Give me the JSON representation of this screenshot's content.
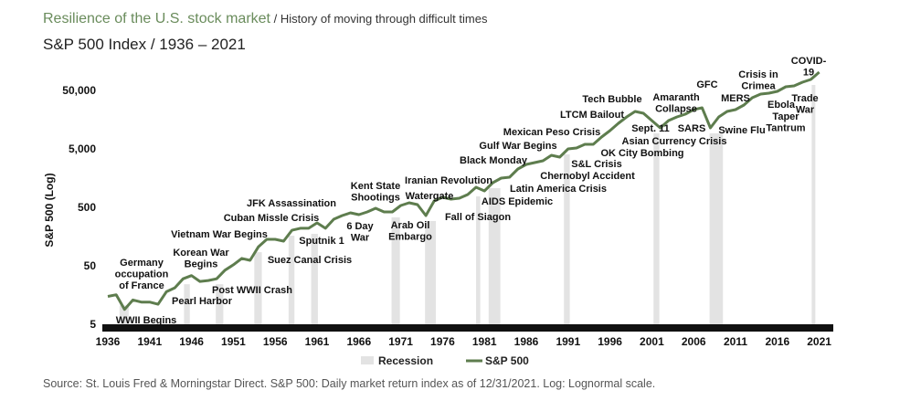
{
  "header": {
    "title": "Resilience of the U.S. stock market",
    "title_suffix": " / History of moving through difficult times",
    "subtitle": "S&P 500 Index / 1936 – 2021"
  },
  "source": "Source: St. Louis Fred & Morningstar Direct. S&P 500: Daily market return index as of 12/31/2021. Log: Lognormal scale.",
  "colors": {
    "line": "#5e7d4e",
    "recession": "#e3e3e3",
    "title": "#6a8c5c",
    "baseline": "#111111"
  },
  "chart_data": {
    "type": "line",
    "title": "S&P 500 Index / 1936 – 2021",
    "ylabel": "S&P 500 (Log)",
    "xlabel": "",
    "yscale": "log",
    "ylim": [
      5,
      100000
    ],
    "xlim": [
      1936,
      2022
    ],
    "grid": false,
    "legend_position": "bottom-center",
    "x_ticks": [
      "1936",
      "1941",
      "1946",
      "1951",
      "1956",
      "1961",
      "1966",
      "1971",
      "1976",
      "1981",
      "1986",
      "1991",
      "1996",
      "2001",
      "2006",
      "2011",
      "2016",
      "2021"
    ],
    "y_ticks": [
      {
        "value": 5,
        "label": "5"
      },
      {
        "value": 50,
        "label": "50"
      },
      {
        "value": 500,
        "label": "500"
      },
      {
        "value": 5000,
        "label": "5,000"
      },
      {
        "value": 50000,
        "label": "50,000"
      }
    ],
    "legend": [
      "Recession",
      "S&P 500"
    ],
    "series": [
      {
        "name": "S&P 500",
        "x": [
          1936,
          1937,
          1938,
          1939,
          1940,
          1941,
          1942,
          1943,
          1944,
          1945,
          1946,
          1947,
          1948,
          1949,
          1950,
          1951,
          1952,
          1953,
          1954,
          1955,
          1956,
          1957,
          1958,
          1959,
          1960,
          1961,
          1962,
          1963,
          1964,
          1965,
          1966,
          1967,
          1968,
          1969,
          1970,
          1971,
          1972,
          1973,
          1974,
          1975,
          1976,
          1977,
          1978,
          1979,
          1980,
          1981,
          1982,
          1983,
          1984,
          1985,
          1986,
          1987,
          1988,
          1989,
          1990,
          1991,
          1992,
          1993,
          1994,
          1995,
          1996,
          1997,
          1998,
          1999,
          2000,
          2001,
          2002,
          2003,
          2004,
          2005,
          2006,
          2007,
          2008,
          2009,
          2010,
          2011,
          2012,
          2013,
          2014,
          2015,
          2016,
          2017,
          2018,
          2019,
          2020,
          2021
        ],
        "y": [
          15,
          16,
          9,
          13,
          12,
          12,
          11,
          18,
          21,
          30,
          34,
          27,
          28,
          30,
          42,
          52,
          67,
          62,
          106,
          142,
          142,
          132,
          203,
          219,
          219,
          271,
          219,
          313,
          362,
          403,
          375,
          418,
          482,
          418,
          418,
          537,
          598,
          557,
          362,
          643,
          743,
          692,
          717,
          828,
          1104,
          955,
          1321,
          1581,
          1640,
          2266,
          2712,
          2916,
          3133,
          3890,
          3617,
          5000,
          5187,
          5986,
          5986,
          7980,
          10267,
          13690,
          17620,
          21870,
          20335,
          15255,
          11435,
          15255,
          17620,
          19630,
          23485,
          25235,
          11435,
          17620,
          21870,
          23485,
          28117,
          37495,
          43300,
          44870,
          48240,
          57750,
          59850,
          69150,
          77000,
          102700
        ]
      }
    ],
    "recessions": [
      [
        1937.4,
        1938.5
      ],
      [
        1945.1,
        1945.8
      ],
      [
        1948.9,
        1949.8
      ],
      [
        1953.5,
        1954.4
      ],
      [
        1957.6,
        1958.3
      ],
      [
        1960.3,
        1961.1
      ],
      [
        1969.9,
        1970.9
      ],
      [
        1973.9,
        1975.2
      ],
      [
        1980.0,
        1980.5
      ],
      [
        1981.5,
        1982.9
      ],
      [
        1990.5,
        1991.2
      ],
      [
        2001.2,
        2001.9
      ],
      [
        2007.9,
        2009.5
      ],
      [
        2020.1,
        2020.4
      ]
    ],
    "annotations": [
      [
        "WWII Begins"
      ],
      [
        "Germany",
        "occupation",
        "of France"
      ],
      [
        "Pearl Harbor"
      ],
      [
        "Korean War",
        "Begins"
      ],
      [
        "Post WWII Crash"
      ],
      [
        "Vietnam War Begins"
      ],
      [
        "Suez Canal Crisis"
      ],
      [
        "Cuban Missle Crisis"
      ],
      [
        "JFK Assassination"
      ],
      [
        "Sputnik 1"
      ],
      [
        "6 Day",
        "War"
      ],
      [
        "Kent State",
        "Shootings"
      ],
      [
        "Iranian Revolution"
      ],
      [
        "Watergate"
      ],
      [
        "Arab Oil",
        "Embargo"
      ],
      [
        "Fall of Siagon"
      ],
      [
        "AIDS Epidemic"
      ],
      [
        "Latin America Crisis"
      ],
      [
        "Black Monday"
      ],
      [
        "Gulf War Begins"
      ],
      [
        "Chernobyl Accident"
      ],
      [
        "S&L Crisis"
      ],
      [
        "OK City Bombing"
      ],
      [
        "Mexican Peso Crisis"
      ],
      [
        "LTCM Bailout"
      ],
      [
        "Tech Bubble"
      ],
      [
        "Sept. 11"
      ],
      [
        "Asian Currency Crisis"
      ],
      [
        "Amaranth",
        "Collapse"
      ],
      [
        "SARS"
      ],
      [
        "GFC"
      ],
      [
        "MERS"
      ],
      [
        "Swine Flu"
      ],
      [
        "Crisis in",
        "Crimea"
      ],
      [
        "Ebola"
      ],
      [
        "Taper",
        "Tantrum"
      ],
      [
        "Trade",
        "War"
      ],
      [
        "COVID-",
        "19"
      ]
    ]
  }
}
